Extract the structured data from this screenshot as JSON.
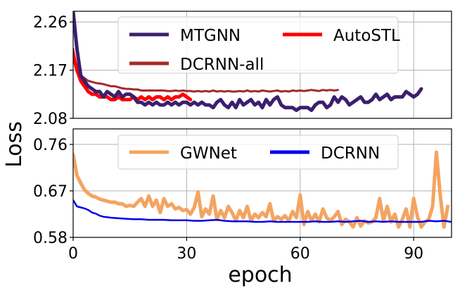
{
  "chart_data": [
    {
      "type": "line",
      "panel": "top",
      "xlabel": "epoch",
      "ylabel": "Loss",
      "xlim": [
        0,
        100
      ],
      "ylim": [
        2.08,
        2.28
      ],
      "x_ticks": [
        0,
        30,
        60,
        90
      ],
      "x_tick_labels": [
        "0",
        "30",
        "60",
        "90"
      ],
      "y_ticks": [
        2.08,
        2.17,
        2.26
      ],
      "y_tick_labels": [
        "2.08",
        "2.17",
        "2.26"
      ],
      "grid": true,
      "legend_position": "top-center",
      "series": [
        {
          "name": "MTGNN",
          "color": "#3b1f6e",
          "x": [
            0,
            1,
            2,
            3,
            4,
            5,
            6,
            7,
            8,
            9,
            10,
            11,
            12,
            13,
            14,
            15,
            16,
            17,
            18,
            19,
            20,
            21,
            22,
            23,
            24,
            25,
            26,
            27,
            28,
            29,
            30,
            31,
            32,
            33,
            34,
            35,
            36,
            37,
            38,
            39,
            40,
            41,
            42,
            43,
            44,
            45,
            46,
            47,
            48,
            49,
            50,
            51,
            52,
            53,
            54,
            55,
            56,
            57,
            58,
            59,
            60,
            61,
            62,
            63,
            64,
            65,
            66,
            67,
            68,
            69,
            70,
            71,
            72,
            73,
            74,
            75,
            76,
            77,
            78,
            79,
            80,
            81,
            82,
            83,
            84,
            85,
            86,
            87,
            88,
            89,
            90,
            91,
            92
          ],
          "values": [
            2.28,
            2.21,
            2.16,
            2.15,
            2.14,
            2.135,
            2.13,
            2.13,
            2.12,
            2.13,
            2.125,
            2.12,
            2.13,
            2.12,
            2.125,
            2.125,
            2.12,
            2.11,
            2.11,
            2.105,
            2.11,
            2.105,
            2.11,
            2.105,
            2.105,
            2.11,
            2.105,
            2.11,
            2.105,
            2.11,
            2.11,
            2.105,
            2.11,
            2.105,
            2.11,
            2.105,
            2.105,
            2.1,
            2.11,
            2.115,
            2.105,
            2.1,
            2.11,
            2.1,
            2.115,
            2.105,
            2.11,
            2.115,
            2.105,
            2.11,
            2.1,
            2.115,
            2.105,
            2.115,
            2.12,
            2.105,
            2.1,
            2.1,
            2.1,
            2.095,
            2.1,
            2.1,
            2.1,
            2.095,
            2.105,
            2.11,
            2.11,
            2.1,
            2.105,
            2.12,
            2.11,
            2.12,
            2.115,
            2.105,
            2.11,
            2.115,
            2.12,
            2.11,
            2.11,
            2.115,
            2.125,
            2.115,
            2.12,
            2.125,
            2.115,
            2.12,
            2.12,
            2.12,
            2.13,
            2.125,
            2.12,
            2.125,
            2.135
          ]
        },
        {
          "name": "AutoSTL",
          "color": "#ff0000",
          "x": [
            0,
            1,
            2,
            3,
            4,
            5,
            6,
            7,
            8,
            9,
            10,
            11,
            12,
            13,
            14,
            15,
            16,
            17,
            18,
            19,
            20,
            21,
            22,
            23,
            24,
            25,
            26,
            27,
            28,
            29,
            30,
            31
          ],
          "values": [
            2.2,
            2.17,
            2.15,
            2.14,
            2.13,
            2.125,
            2.125,
            2.12,
            2.12,
            2.12,
            2.115,
            2.115,
            2.12,
            2.115,
            2.115,
            2.115,
            2.12,
            2.115,
            2.12,
            2.115,
            2.12,
            2.115,
            2.12,
            2.12,
            2.115,
            2.12,
            2.115,
            2.12,
            2.12,
            2.125,
            2.12,
            2.115
          ]
        },
        {
          "name": "DCRNN-all",
          "color": "#a52a2a",
          "x": [
            0,
            1,
            2,
            3,
            4,
            5,
            6,
            7,
            8,
            9,
            10,
            11,
            12,
            13,
            14,
            15,
            16,
            17,
            18,
            19,
            20,
            21,
            22,
            23,
            24,
            25,
            26,
            27,
            28,
            29,
            30,
            31,
            32,
            33,
            34,
            35,
            36,
            37,
            38,
            39,
            40,
            41,
            42,
            43,
            44,
            45,
            46,
            47,
            48,
            49,
            50,
            51,
            52,
            53,
            54,
            55,
            56,
            57,
            58,
            59,
            60,
            61,
            62,
            63,
            64,
            65,
            66,
            67,
            68,
            69,
            70
          ],
          "values": [
            2.21,
            2.17,
            2.16,
            2.155,
            2.15,
            2.148,
            2.146,
            2.145,
            2.144,
            2.142,
            2.14,
            2.14,
            2.138,
            2.136,
            2.135,
            2.135,
            2.134,
            2.134,
            2.132,
            2.132,
            2.132,
            2.132,
            2.132,
            2.132,
            2.132,
            2.131,
            2.131,
            2.132,
            2.131,
            2.132,
            2.131,
            2.131,
            2.13,
            2.131,
            2.13,
            2.131,
            2.13,
            2.132,
            2.13,
            2.131,
            2.13,
            2.131,
            2.13,
            2.13,
            2.131,
            2.13,
            2.132,
            2.13,
            2.131,
            2.13,
            2.132,
            2.131,
            2.13,
            2.131,
            2.132,
            2.13,
            2.131,
            2.13,
            2.132,
            2.131,
            2.132,
            2.131,
            2.132,
            2.133,
            2.132,
            2.131,
            2.133,
            2.132,
            2.133,
            2.132,
            2.133
          ]
        }
      ],
      "legend": [
        "MTGNN",
        "AutoSTL",
        "DCRNN-all"
      ]
    },
    {
      "type": "line",
      "panel": "bottom",
      "xlabel": "epoch",
      "ylabel": "Loss",
      "xlim": [
        0,
        100
      ],
      "ylim": [
        0.58,
        0.79
      ],
      "x_ticks": [
        0,
        30,
        60,
        90
      ],
      "x_tick_labels": [
        "0",
        "30",
        "60",
        "90"
      ],
      "y_ticks": [
        0.58,
        0.67,
        0.76
      ],
      "y_tick_labels": [
        "0.58",
        "0.67",
        "0.76"
      ],
      "grid": true,
      "legend_position": "top-center",
      "series": [
        {
          "name": "GWNet",
          "color": "#f4a460",
          "x": [
            0,
            1,
            2,
            3,
            4,
            5,
            6,
            7,
            8,
            9,
            10,
            11,
            12,
            13,
            14,
            15,
            16,
            17,
            18,
            19,
            20,
            21,
            22,
            23,
            24,
            25,
            26,
            27,
            28,
            29,
            30,
            31,
            32,
            33,
            34,
            35,
            36,
            37,
            38,
            39,
            40,
            41,
            42,
            43,
            44,
            45,
            46,
            47,
            48,
            49,
            50,
            51,
            52,
            53,
            54,
            55,
            56,
            57,
            58,
            59,
            60,
            61,
            62,
            63,
            64,
            65,
            66,
            67,
            68,
            69,
            70,
            71,
            72,
            73,
            74,
            75,
            76,
            77,
            78,
            79,
            80,
            81,
            82,
            83,
            84,
            85,
            86,
            87,
            88,
            89,
            90,
            91,
            92,
            93,
            94,
            95,
            96,
            97,
            98,
            99
          ],
          "values": [
            0.74,
            0.7,
            0.685,
            0.672,
            0.665,
            0.66,
            0.658,
            0.654,
            0.652,
            0.65,
            0.648,
            0.648,
            0.645,
            0.645,
            0.64,
            0.642,
            0.64,
            0.648,
            0.655,
            0.64,
            0.66,
            0.64,
            0.652,
            0.628,
            0.655,
            0.64,
            0.645,
            0.635,
            0.638,
            0.632,
            0.634,
            0.625,
            0.638,
            0.668,
            0.62,
            0.635,
            0.625,
            0.66,
            0.615,
            0.632,
            0.618,
            0.64,
            0.628,
            0.612,
            0.632,
            0.618,
            0.64,
            0.612,
            0.625,
            0.618,
            0.628,
            0.62,
            0.645,
            0.612,
            0.62,
            0.615,
            0.622,
            0.612,
            0.63,
            0.618,
            0.662,
            0.605,
            0.63,
            0.612,
            0.625,
            0.61,
            0.635,
            0.618,
            0.612,
            0.62,
            0.63,
            0.605,
            0.615,
            0.61,
            0.6,
            0.618,
            0.602,
            0.612,
            0.608,
            0.61,
            0.618,
            0.655,
            0.612,
            0.64,
            0.61,
            0.625,
            0.6,
            0.615,
            0.635,
            0.6,
            0.655,
            0.62,
            0.6,
            0.61,
            0.615,
            0.64,
            0.745,
            0.662,
            0.6,
            0.64
          ]
        },
        {
          "name": "DCRNN",
          "color": "#0000ee",
          "x": [
            0,
            1,
            2,
            3,
            4,
            5,
            6,
            7,
            8,
            9,
            10,
            12,
            14,
            16,
            18,
            20,
            22,
            24,
            26,
            28,
            30,
            32,
            34,
            36,
            38,
            40,
            42,
            44,
            46,
            48,
            50,
            52,
            54,
            56,
            58,
            60,
            62,
            64,
            66,
            68,
            70,
            72,
            74,
            76,
            78,
            80,
            82,
            84,
            86,
            88,
            90,
            92,
            94,
            96,
            98,
            100
          ],
          "values": [
            0.652,
            0.64,
            0.638,
            0.636,
            0.633,
            0.628,
            0.626,
            0.622,
            0.62,
            0.619,
            0.618,
            0.617,
            0.616,
            0.615,
            0.615,
            0.614,
            0.614,
            0.614,
            0.613,
            0.613,
            0.613,
            0.612,
            0.612,
            0.613,
            0.614,
            0.612,
            0.611,
            0.611,
            0.611,
            0.61,
            0.61,
            0.611,
            0.61,
            0.61,
            0.61,
            0.61,
            0.61,
            0.611,
            0.61,
            0.61,
            0.611,
            0.61,
            0.611,
            0.612,
            0.61,
            0.611,
            0.61,
            0.611,
            0.61,
            0.61,
            0.61,
            0.61,
            0.612,
            0.611,
            0.612,
            0.61
          ]
        }
      ],
      "legend": [
        "GWNet",
        "DCRNN"
      ]
    }
  ]
}
